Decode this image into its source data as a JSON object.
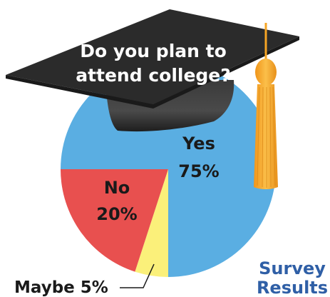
{
  "chart_data": {
    "type": "pie",
    "title_lines": [
      "Do you plan to",
      "attend college?"
    ],
    "caption_lines": [
      "Survey",
      "Results"
    ],
    "slices": [
      {
        "label": "Yes",
        "percent_text": "75%",
        "value": 75,
        "color": "#5aaee2"
      },
      {
        "label": "Maybe",
        "percent_text": "5%",
        "value": 5,
        "color": "#fbf07a"
      },
      {
        "label": "No",
        "percent_text": "20%",
        "value": 20,
        "color": "#e8504f"
      }
    ],
    "maybe_label": "Maybe 5%"
  },
  "colors": {
    "cap": "#2b2b2b",
    "tassel": "#f6a524",
    "caption": "#2f5fa6"
  }
}
